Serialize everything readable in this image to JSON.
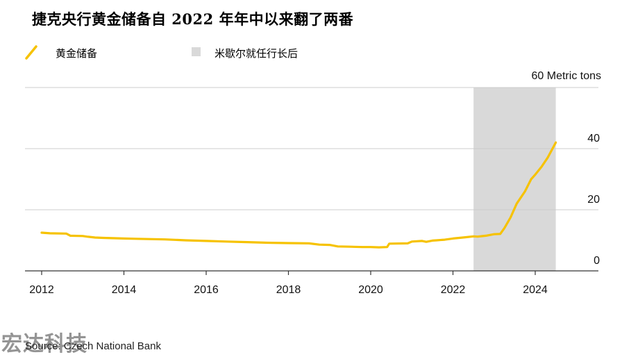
{
  "title": "捷克央行黄金储备自 2022 年年中以来翻了两番",
  "legend": {
    "line_label": "黄金储备",
    "band_label": "米歇尔就任行长后"
  },
  "source": "Source: Czech National Bank",
  "watermark": "宏达科技",
  "colors": {
    "line": "#f6c200",
    "band": "#d9d9d9",
    "grid": "#cccccc",
    "axis": "#333333"
  },
  "chart_data": {
    "type": "line",
    "title": "捷克央行黄金储备自 2022 年年中以来翻了两番",
    "ylabel": "60 Metric tons",
    "unit": "Metric tons",
    "xlim": [
      2011.75,
      2025.5
    ],
    "ylim": [
      0,
      60
    ],
    "x_ticks": [
      2012,
      2014,
      2016,
      2018,
      2020,
      2022,
      2024
    ],
    "x_tick_labels": [
      "2012",
      "2014",
      "2016",
      "2018",
      "2020",
      "2022",
      "2024"
    ],
    "y_ticks": [
      0,
      20,
      40,
      60
    ],
    "y_tick_labels": [
      "0",
      "20",
      "40",
      "60 Metric tons"
    ],
    "grid": true,
    "legend_position": "top-left",
    "shaded_band": {
      "label": "米歇尔就任行长后",
      "x_start": 2022.5,
      "x_end": 2024.5
    },
    "series": [
      {
        "name": "黄金储备",
        "x": [
          2012.0,
          2012.2,
          2012.6,
          2012.7,
          2013.0,
          2013.1,
          2013.3,
          2013.5,
          2014.0,
          2014.3,
          2015.0,
          2015.5,
          2016.0,
          2016.5,
          2017.0,
          2017.5,
          2018.0,
          2018.5,
          2018.75,
          2019.0,
          2019.2,
          2019.5,
          2019.8,
          2020.0,
          2020.2,
          2020.4,
          2020.45,
          2020.9,
          2021.0,
          2021.25,
          2021.35,
          2021.5,
          2021.6,
          2021.8,
          2022.0,
          2022.3,
          2022.5,
          2022.6,
          2022.8,
          2023.0,
          2023.15,
          2023.25,
          2023.4,
          2023.55,
          2023.75,
          2023.9,
          2024.0,
          2024.15,
          2024.3,
          2024.5
        ],
        "values": [
          12.5,
          12.3,
          12.2,
          11.5,
          11.4,
          11.2,
          10.9,
          10.8,
          10.6,
          10.5,
          10.3,
          10.0,
          9.8,
          9.6,
          9.4,
          9.2,
          9.1,
          9.0,
          8.6,
          8.5,
          8.0,
          7.9,
          7.8,
          7.8,
          7.7,
          7.8,
          8.9,
          9.0,
          9.6,
          9.8,
          9.5,
          9.9,
          10.0,
          10.2,
          10.6,
          11.0,
          11.3,
          11.2,
          11.5,
          12.0,
          12.1,
          14.0,
          17.5,
          22.0,
          26.0,
          30.0,
          31.5,
          34.0,
          37.0,
          42.0
        ]
      }
    ]
  }
}
